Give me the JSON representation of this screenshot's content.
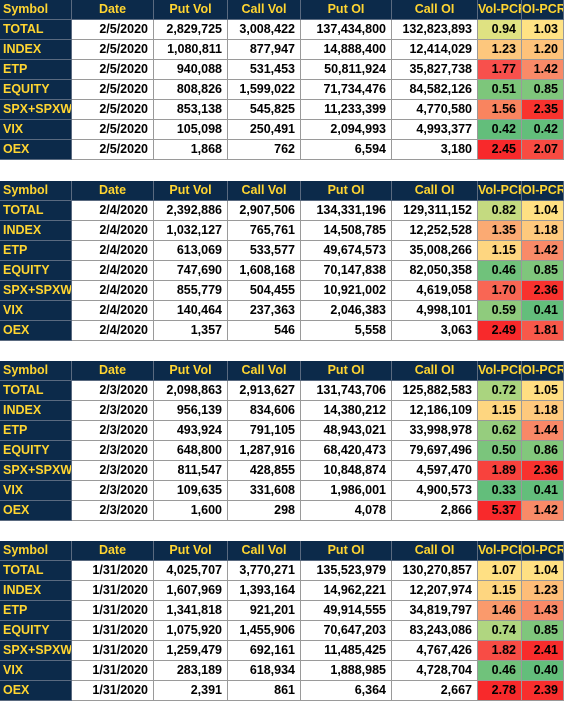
{
  "headers": [
    "Symbol",
    "Date",
    "Put Vol",
    "Call Vol",
    "Put OI",
    "Call OI",
    "Vol-PCR",
    "OI-PCR"
  ],
  "colors": {
    "header_bg": "#0c2a4a",
    "header_text": "#ffd531",
    "green": "#63be7b",
    "yellow": "#ffe083",
    "red": "#f8292b"
  },
  "sections": [
    {
      "rows": [
        {
          "symbol": "TOTAL",
          "date": "2/5/2020",
          "put_vol": "2,829,725",
          "call_vol": "3,008,422",
          "put_oi": "137,434,800",
          "call_oi": "132,823,893",
          "vol_pcr": "0.94",
          "oi_pcr": "1.03",
          "vol_color": "#dfe282",
          "oi_color": "#ffe284"
        },
        {
          "symbol": "INDEX",
          "date": "2/5/2020",
          "put_vol": "1,080,811",
          "call_vol": "877,947",
          "put_oi": "14,888,400",
          "call_oi": "12,414,029",
          "vol_pcr": "1.23",
          "oi_pcr": "1.20",
          "vol_color": "#fdc77d",
          "oi_color": "#fec27a"
        },
        {
          "symbol": "ETP",
          "date": "2/5/2020",
          "put_vol": "940,088",
          "call_vol": "531,453",
          "put_oi": "50,811,924",
          "call_oi": "35,827,738",
          "vol_pcr": "1.77",
          "oi_pcr": "1.42",
          "vol_color": "#f8504c",
          "oi_color": "#f98a68"
        },
        {
          "symbol": "EQUITY",
          "date": "2/5/2020",
          "put_vol": "808,826",
          "call_vol": "1,599,022",
          "put_oi": "71,734,476",
          "call_oi": "84,582,126",
          "vol_pcr": "0.51",
          "oi_pcr": "0.85",
          "vol_color": "#7dc67b",
          "oi_color": "#7fc67c"
        },
        {
          "symbol": "SPX+SPXW",
          "date": "2/5/2020",
          "put_vol": "853,138",
          "call_vol": "545,825",
          "put_oi": "11,233,399",
          "call_oi": "4,770,580",
          "vol_pcr": "1.56",
          "oi_pcr": "2.35",
          "vol_color": "#f9845f",
          "oi_color": "#f8332e"
        },
        {
          "symbol": "VIX",
          "date": "2/5/2020",
          "put_vol": "105,098",
          "call_vol": "250,491",
          "put_oi": "2,094,993",
          "call_oi": "4,993,377",
          "vol_pcr": "0.42",
          "oi_pcr": "0.42",
          "vol_color": "#63be7b",
          "oi_color": "#63be7b"
        },
        {
          "symbol": "OEX",
          "date": "2/5/2020",
          "put_vol": "1,868",
          "call_vol": "762",
          "put_oi": "6,594",
          "call_oi": "3,180",
          "vol_pcr": "2.45",
          "oi_pcr": "2.07",
          "vol_color": "#f8292b",
          "oi_color": "#f84b42"
        }
      ]
    },
    {
      "rows": [
        {
          "symbol": "TOTAL",
          "date": "2/4/2020",
          "put_vol": "2,392,886",
          "call_vol": "2,907,506",
          "put_oi": "134,331,196",
          "call_oi": "129,311,152",
          "vol_pcr": "0.82",
          "oi_pcr": "1.04",
          "vol_color": "#c4da80",
          "oi_color": "#ffe083"
        },
        {
          "symbol": "INDEX",
          "date": "2/4/2020",
          "put_vol": "1,032,127",
          "call_vol": "765,761",
          "put_oi": "14,508,785",
          "call_oi": "12,252,528",
          "vol_pcr": "1.35",
          "oi_pcr": "1.18",
          "vol_color": "#fbaa73",
          "oi_color": "#fec97d"
        },
        {
          "symbol": "ETP",
          "date": "2/4/2020",
          "put_vol": "613,069",
          "call_vol": "533,577",
          "put_oi": "49,674,573",
          "call_oi": "35,008,266",
          "vol_pcr": "1.15",
          "oi_pcr": "1.42",
          "vol_color": "#fed680",
          "oi_color": "#f98a68"
        },
        {
          "symbol": "EQUITY",
          "date": "2/4/2020",
          "put_vol": "747,690",
          "call_vol": "1,608,168",
          "put_oi": "70,147,838",
          "call_oi": "82,050,358",
          "vol_pcr": "0.46",
          "oi_pcr": "0.85",
          "vol_color": "#70c27b",
          "oi_color": "#7fc67c"
        },
        {
          "symbol": "SPX+SPXW",
          "date": "2/4/2020",
          "put_vol": "855,779",
          "call_vol": "504,455",
          "put_oi": "10,921,002",
          "call_oi": "4,619,058",
          "vol_pcr": "1.70",
          "oi_pcr": "2.36",
          "vol_color": "#f96654",
          "oi_color": "#f8322e"
        },
        {
          "symbol": "VIX",
          "date": "2/4/2020",
          "put_vol": "140,464",
          "call_vol": "237,363",
          "put_oi": "2,046,383",
          "call_oi": "4,998,101",
          "vol_pcr": "0.59",
          "oi_pcr": "0.41",
          "vol_color": "#8fcb7d",
          "oi_color": "#63be7b"
        },
        {
          "symbol": "OEX",
          "date": "2/4/2020",
          "put_vol": "1,357",
          "call_vol": "546",
          "put_oi": "5,558",
          "call_oi": "3,063",
          "vol_pcr": "2.49",
          "oi_pcr": "1.81",
          "vol_color": "#f8292b",
          "oi_color": "#f8584a"
        }
      ]
    },
    {
      "rows": [
        {
          "symbol": "TOTAL",
          "date": "2/3/2020",
          "put_vol": "2,098,863",
          "call_vol": "2,913,627",
          "put_oi": "131,743,706",
          "call_oi": "125,882,583",
          "vol_pcr": "0.72",
          "oi_pcr": "1.05",
          "vol_color": "#aad47f",
          "oi_color": "#ffde82"
        },
        {
          "symbol": "INDEX",
          "date": "2/3/2020",
          "put_vol": "956,139",
          "call_vol": "834,606",
          "put_oi": "14,380,212",
          "call_oi": "12,186,109",
          "vol_pcr": "1.15",
          "oi_pcr": "1.18",
          "vol_color": "#fed680",
          "oi_color": "#fec97d"
        },
        {
          "symbol": "ETP",
          "date": "2/3/2020",
          "put_vol": "493,924",
          "call_vol": "791,105",
          "put_oi": "48,943,021",
          "call_oi": "33,998,978",
          "vol_pcr": "0.62",
          "oi_pcr": "1.44",
          "vol_color": "#96cd7e",
          "oi_color": "#f98867"
        },
        {
          "symbol": "EQUITY",
          "date": "2/3/2020",
          "put_vol": "648,800",
          "call_vol": "1,287,916",
          "put_oi": "68,420,473",
          "call_oi": "79,697,496",
          "vol_pcr": "0.50",
          "oi_pcr": "0.86",
          "vol_color": "#7bc57c",
          "oi_color": "#82c77c"
        },
        {
          "symbol": "SPX+SPXW",
          "date": "2/3/2020",
          "put_vol": "811,547",
          "call_vol": "428,855",
          "put_oi": "10,848,874",
          "call_oi": "4,597,470",
          "vol_pcr": "1.89",
          "oi_pcr": "2.36",
          "vol_color": "#f8423d",
          "oi_color": "#f8322e"
        },
        {
          "symbol": "VIX",
          "date": "2/3/2020",
          "put_vol": "109,635",
          "call_vol": "331,608",
          "put_oi": "1,986,001",
          "call_oi": "4,900,573",
          "vol_pcr": "0.33",
          "oi_pcr": "0.41",
          "vol_color": "#63be7b",
          "oi_color": "#63be7b"
        },
        {
          "symbol": "OEX",
          "date": "2/3/2020",
          "put_vol": "1,600",
          "call_vol": "298",
          "put_oi": "4,078",
          "call_oi": "2,866",
          "vol_pcr": "5.37",
          "oi_pcr": "1.42",
          "vol_color": "#f8292b",
          "oi_color": "#f98a68"
        }
      ]
    },
    {
      "rows": [
        {
          "symbol": "TOTAL",
          "date": "1/31/2020",
          "put_vol": "4,025,707",
          "call_vol": "3,770,271",
          "put_oi": "135,523,979",
          "call_oi": "130,270,857",
          "vol_pcr": "1.07",
          "oi_pcr": "1.04",
          "vol_color": "#ffe083",
          "oi_color": "#ffe083"
        },
        {
          "symbol": "INDEX",
          "date": "1/31/2020",
          "put_vol": "1,607,969",
          "call_vol": "1,393,164",
          "put_oi": "14,962,221",
          "call_oi": "12,207,974",
          "vol_pcr": "1.15",
          "oi_pcr": "1.23",
          "vol_color": "#fed680",
          "oi_color": "#febd78"
        },
        {
          "symbol": "ETP",
          "date": "1/31/2020",
          "put_vol": "1,341,818",
          "call_vol": "921,201",
          "put_oi": "49,914,555",
          "call_oi": "34,819,797",
          "vol_pcr": "1.46",
          "oi_pcr": "1.43",
          "vol_color": "#fa9a6c",
          "oi_color": "#f98967"
        },
        {
          "symbol": "EQUITY",
          "date": "1/31/2020",
          "put_vol": "1,075,920",
          "call_vol": "1,455,906",
          "put_oi": "70,647,203",
          "call_oi": "83,243,086",
          "vol_pcr": "0.74",
          "oi_pcr": "0.85",
          "vol_color": "#b0d680",
          "oi_color": "#7fc67c"
        },
        {
          "symbol": "SPX+SPXW",
          "date": "1/31/2020",
          "put_vol": "1,259,479",
          "call_vol": "692,161",
          "put_oi": "11,485,425",
          "call_oi": "4,767,426",
          "vol_pcr": "1.82",
          "oi_pcr": "2.41",
          "vol_color": "#f84c45",
          "oi_color": "#f82c2c"
        },
        {
          "symbol": "VIX",
          "date": "1/31/2020",
          "put_vol": "283,189",
          "call_vol": "618,934",
          "put_oi": "1,888,985",
          "call_oi": "4,728,704",
          "vol_pcr": "0.46",
          "oi_pcr": "0.40",
          "vol_color": "#70c27b",
          "oi_color": "#63be7b"
        },
        {
          "symbol": "OEX",
          "date": "1/31/2020",
          "put_vol": "2,391",
          "call_vol": "861",
          "put_oi": "6,364",
          "call_oi": "2,667",
          "vol_pcr": "2.78",
          "oi_pcr": "2.39",
          "vol_color": "#f8292b",
          "oi_color": "#f82e2d"
        }
      ]
    }
  ]
}
